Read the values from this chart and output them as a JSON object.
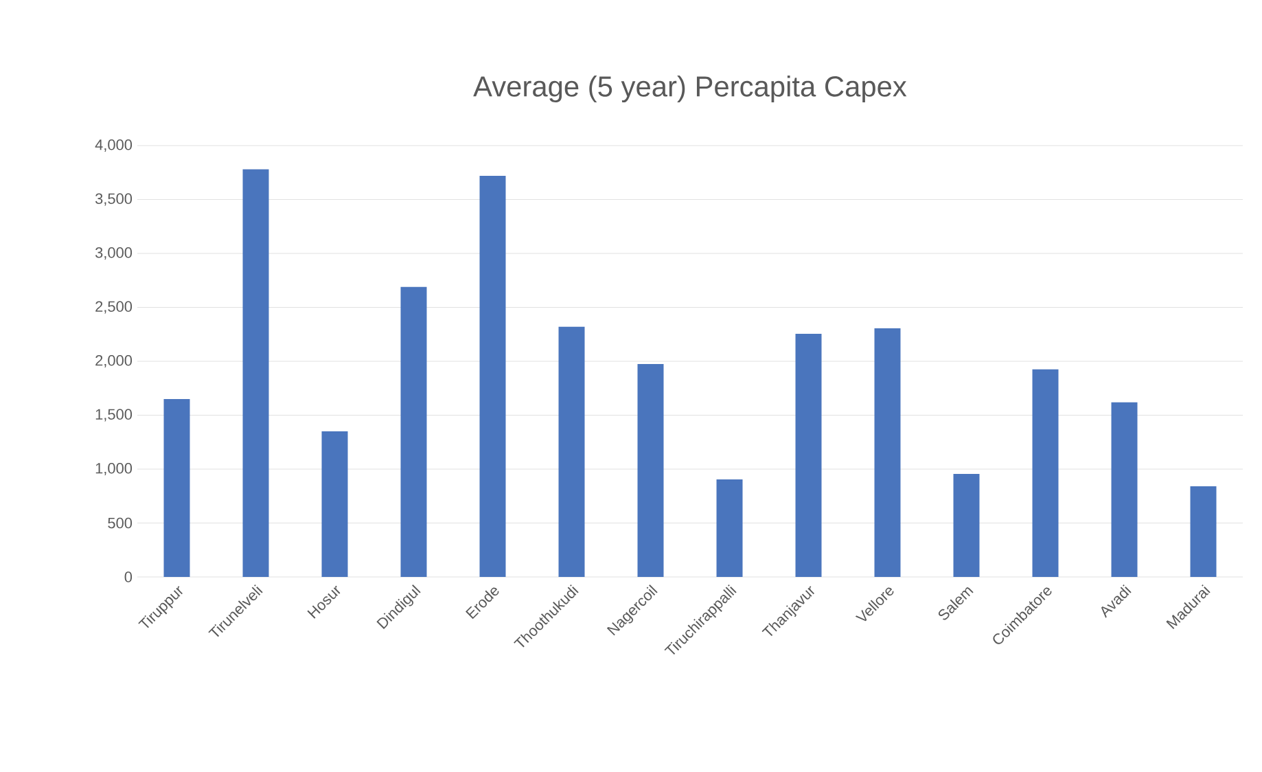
{
  "chart_data": {
    "type": "bar",
    "title": "Average (5 year) Percapita Capex",
    "categories": [
      "Tiruppur",
      "Tirunelveli",
      "Hosur",
      "Dindigul",
      "Erode",
      "Thoothukudi",
      "Nagercoil",
      "Tiruchirappalli",
      "Thanjavur",
      "Vellore",
      "Salem",
      "Coimbatore",
      "Avadi",
      "Madurai"
    ],
    "values": [
      1650,
      3780,
      1350,
      2690,
      3720,
      2320,
      1975,
      905,
      2255,
      2305,
      955,
      1925,
      1620,
      840
    ],
    "color": "#4a75bd",
    "ylim": [
      0,
      4000
    ],
    "yticks": [
      {
        "value": 0,
        "label": "0"
      },
      {
        "value": 500,
        "label": "500"
      },
      {
        "value": 1000,
        "label": "1,000"
      },
      {
        "value": 1500,
        "label": "1,500"
      },
      {
        "value": 2000,
        "label": "2,000"
      },
      {
        "value": 2500,
        "label": "2,500"
      },
      {
        "value": 3000,
        "label": "3,000"
      },
      {
        "value": 3500,
        "label": "3,500"
      },
      {
        "value": 4000,
        "label": "4,000"
      }
    ],
    "grid": "y"
  }
}
